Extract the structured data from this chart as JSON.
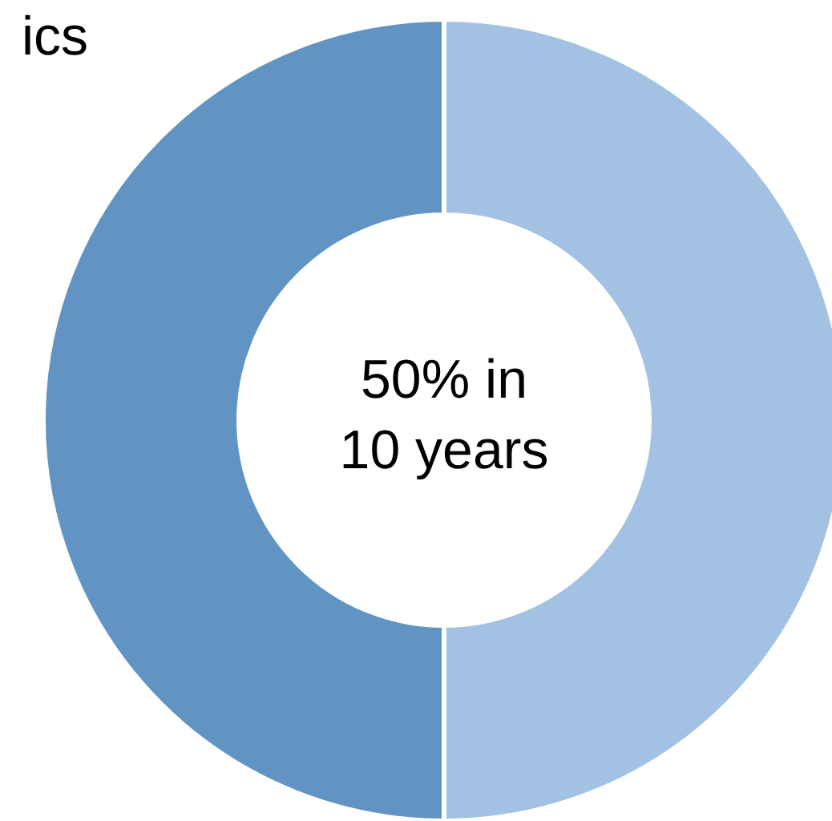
{
  "chart_data": {
    "type": "donut",
    "categories": [
      null,
      null
    ],
    "values": [
      50,
      50
    ],
    "colors": [
      "#a3c1e3",
      "#6194c3"
    ],
    "annotations": [
      "ics",
      "50% in\n10 years"
    ]
  }
}
